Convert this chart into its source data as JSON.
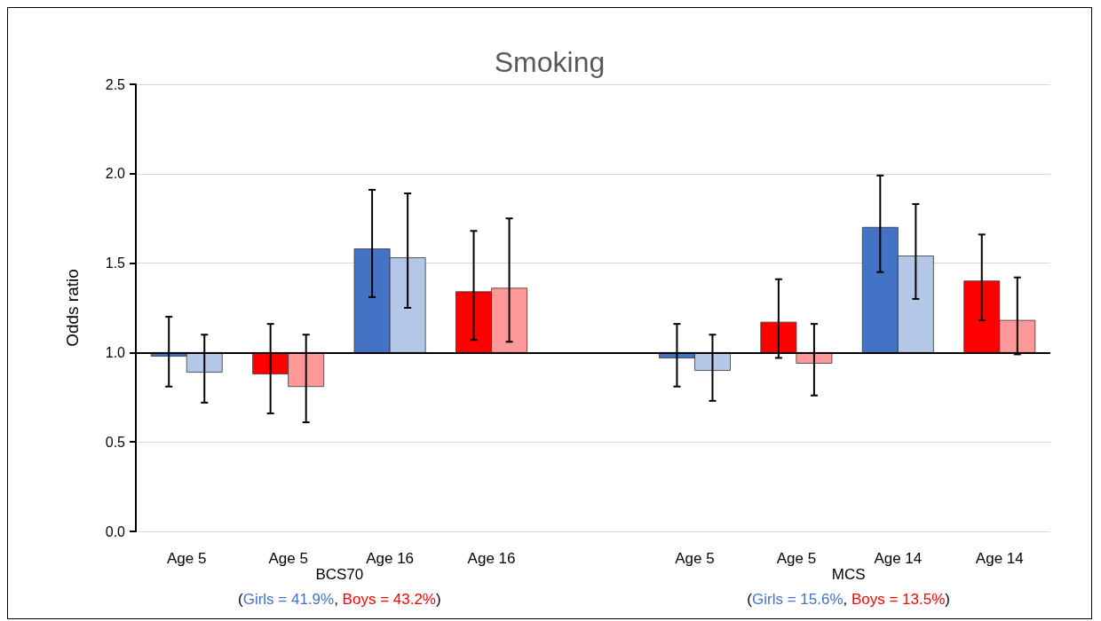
{
  "chart_data": {
    "type": "bar",
    "title": "Smoking",
    "ylabel": "Odds ratio",
    "categories": [
      "Age 5",
      "Age 5",
      "Age 16",
      "Age 16",
      null,
      "Age 5",
      "Age 5",
      "Age 14",
      "Age 14"
    ],
    "series": [
      {
        "colors": [
          "#4472c4",
          "#ff0000",
          "#4472c4",
          "#ff0000",
          null,
          "#4472c4",
          "#ff0000",
          "#4472c4",
          "#ff0000"
        ],
        "base": [
          1,
          1,
          1,
          1,
          null,
          1,
          1,
          1,
          1
        ],
        "values": [
          -0.02,
          -0.12,
          0.58,
          0.34,
          null,
          -0.03,
          0.17,
          0.7,
          0.4
        ],
        "errors": [
          [
            0.81,
            1.2
          ],
          [
            0.66,
            1.16
          ],
          [
            1.31,
            1.91
          ],
          [
            1.07,
            1.68
          ],
          null,
          [
            0.81,
            1.16
          ],
          [
            0.97,
            1.41
          ],
          [
            1.45,
            1.99
          ],
          [
            1.18,
            1.66
          ]
        ]
      },
      {
        "colors": [
          "#b4c7e7",
          "#ff9999",
          "#b4c7e7",
          "#ff9999",
          null,
          "#b4c7e7",
          "#ff9999",
          "#b4c7e7",
          "#ff9999"
        ],
        "base": [
          1,
          1,
          1,
          1,
          null,
          1,
          1,
          1,
          1
        ],
        "values": [
          -0.11,
          -0.19,
          0.53,
          0.36,
          null,
          -0.1,
          -0.06,
          0.54,
          0.18
        ],
        "errors": [
          [
            0.72,
            1.1
          ],
          [
            0.61,
            1.1
          ],
          [
            1.25,
            1.89
          ],
          [
            1.06,
            1.75
          ],
          null,
          [
            0.73,
            1.1
          ],
          [
            0.76,
            1.16
          ],
          [
            1.3,
            1.83
          ],
          [
            0.99,
            1.42
          ]
        ]
      }
    ],
    "ylim": [
      0,
      2.5
    ],
    "yticks": [
      {
        "value": 0,
        "label": "0.0"
      },
      {
        "value": 0.5,
        "label": "0.5"
      },
      {
        "value": 1,
        "label": "1.0"
      },
      {
        "value": 1.5,
        "label": "1.5"
      },
      {
        "value": 2,
        "label": "2.0"
      },
      {
        "value": 2.5,
        "label": "2.5"
      }
    ],
    "ref_lines": [
      {
        "axis": "y",
        "value": 1,
        "color": "#000000"
      }
    ],
    "grid": "y",
    "annotations": [
      "BCS70",
      "(Girls = 41.9%, Boys = 43.2%)",
      "MCS",
      "(Girls = 15.6%, Boys = 13.5%)"
    ]
  }
}
